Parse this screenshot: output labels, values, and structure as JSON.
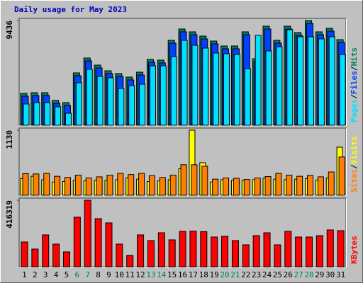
{
  "chart_data": [
    {
      "type": "bar",
      "title": "Daily usage for May 2023",
      "title_color": "#0000c0",
      "legend_separator": "/",
      "ylim": [
        0,
        9436
      ],
      "yticks": [
        9436
      ],
      "series": [
        {
          "name": "Hits",
          "color": "#00805c",
          "values": [
            2869,
            2933,
            2933,
            2232,
            2040,
            4718,
            6057,
            5420,
            4910,
            4654,
            4336,
            4782,
            5930,
            5866,
            7651,
            8671,
            8416,
            8034,
            7587,
            7141,
            7141,
            8416,
            5993,
            8926,
            7651,
            8926,
            8353,
            9436,
            8416,
            8735,
            7715
          ]
        },
        {
          "name": "Files",
          "color": "#0040ff",
          "values": [
            2614,
            2678,
            2678,
            1977,
            1785,
            4463,
            5802,
            5165,
            4655,
            4399,
            4081,
            4527,
            5675,
            5611,
            7396,
            8416,
            8161,
            7779,
            7332,
            6886,
            6886,
            8161,
            5738,
            8671,
            7396,
            8671,
            8098,
            9181,
            8161,
            8480,
            7460
          ]
        },
        {
          "name": "Pages",
          "color": "#00e0ff",
          "values": [
            1913,
            2040,
            2040,
            1658,
            1084,
            3826,
            5037,
            4399,
            4272,
            3316,
            3571,
            3698,
            5356,
            5356,
            6185,
            7651,
            7205,
            6950,
            6504,
            6440,
            6376,
            5101,
            8098,
            6695,
            7077,
            8608,
            7970,
            7970,
            7779,
            7970,
            6376
          ]
        }
      ]
    },
    {
      "type": "bar",
      "legend_separator": "/",
      "ylim": [
        0,
        1130
      ],
      "yticks": [
        1130
      ],
      "series": [
        {
          "name": "Visits",
          "color": "#ffff00",
          "values": [
            290,
            330,
            270,
            230,
            240,
            260,
            250,
            260,
            260,
            270,
            300,
            280,
            240,
            250,
            270,
            460,
            1130,
            565,
            230,
            270,
            260,
            260,
            270,
            300,
            280,
            270,
            280,
            290,
            260,
            300,
            835
          ]
        },
        {
          "name": "Sites",
          "color": "#ff8000",
          "values": [
            375,
            370,
            380,
            330,
            310,
            350,
            300,
            320,
            350,
            380,
            360,
            380,
            340,
            310,
            350,
            530,
            530,
            505,
            280,
            300,
            295,
            275,
            300,
            325,
            380,
            350,
            330,
            345,
            320,
            405,
            665
          ]
        }
      ]
    },
    {
      "type": "bar",
      "ylim": [
        0,
        416319
      ],
      "yticks": [
        416319
      ],
      "categories": [
        "1",
        "2",
        "3",
        "4",
        "5",
        "6",
        "7",
        "8",
        "9",
        "10",
        "11",
        "12",
        "13",
        "14",
        "15",
        "16",
        "17",
        "18",
        "19",
        "20",
        "21",
        "22",
        "23",
        "24",
        "25",
        "26",
        "27",
        "28",
        "29",
        "30",
        "31"
      ],
      "category_colors": [
        "#000000",
        "#000000",
        "#000000",
        "#000000",
        "#000000",
        "#00805c",
        "#00805c",
        "#000000",
        "#000000",
        "#000000",
        "#000000",
        "#000000",
        "#00805c",
        "#00805c",
        "#000000",
        "#000000",
        "#000000",
        "#000000",
        "#000000",
        "#00805c",
        "#00805c",
        "#000000",
        "#000000",
        "#000000",
        "#000000",
        "#000000",
        "#00805c",
        "#00805c",
        "#000000",
        "#000000",
        "#000000"
      ],
      "series": [
        {
          "name": "KBytes",
          "color": "#ff0000",
          "values": [
            155015,
            110725,
            199305,
            141728,
            93009,
            310030,
            416319,
            301172,
            274598,
            141728,
            70864,
            199305,
            163873,
            212592,
            168302,
            221450,
            223100,
            219800,
            186018,
            190447,
            163873,
            137299,
            194876,
            212592,
            137299,
            221450,
            186018,
            186018,
            194876,
            230308,
            225879
          ]
        }
      ]
    }
  ]
}
